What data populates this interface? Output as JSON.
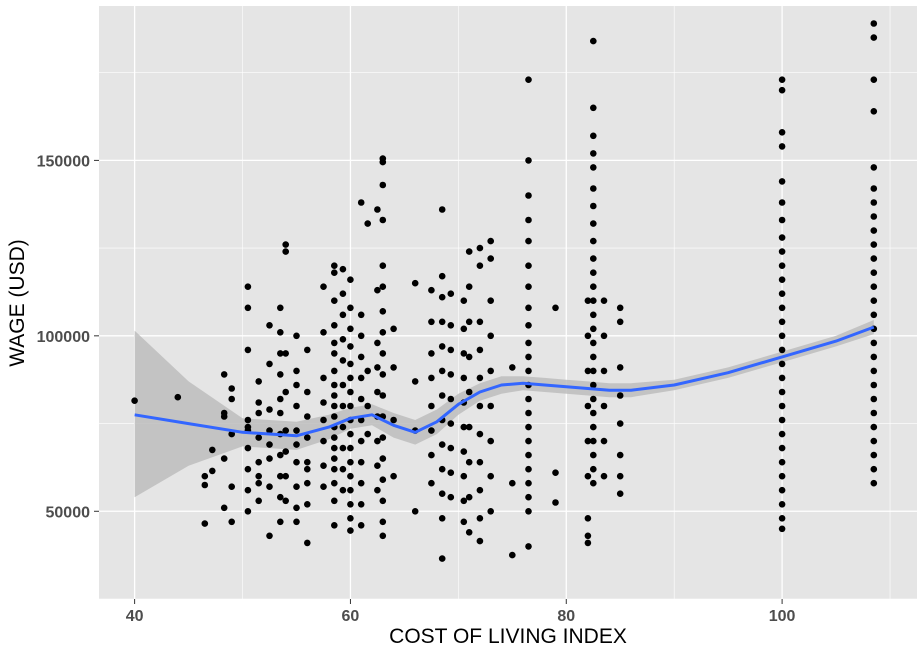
{
  "chart_data": {
    "type": "scatter",
    "title": "",
    "xlabel": "COST OF LIVING INDEX",
    "ylabel": "WAGE (USD)",
    "xlim": [
      36.7,
      112.5
    ],
    "ylim": [
      25000,
      194000
    ],
    "x_ticks": [
      40,
      60,
      80,
      100
    ],
    "x_tick_labels": [
      "40",
      "60",
      "80",
      "100"
    ],
    "y_ticks": [
      50000,
      100000,
      150000
    ],
    "y_tick_labels": [
      "50000",
      "100000",
      "150000"
    ],
    "grid": true,
    "legend": "none",
    "colors": {
      "panel": "#e5e5e5",
      "grid": "#ffffff",
      "points": "#000000",
      "smooth_line": "#3366ff",
      "ribbon": "#bdbdbd"
    },
    "columns": [
      {
        "x": 40.0,
        "wages": [
          81500
        ]
      },
      {
        "x": 44.0,
        "wages": [
          82500
        ]
      },
      {
        "x": 46.5,
        "wages": [
          60000,
          46500,
          57500
        ]
      },
      {
        "x": 47.2,
        "wages": [
          61500,
          67500
        ]
      },
      {
        "x": 48.3,
        "wages": [
          89000,
          78000,
          51000,
          65000,
          77000
        ]
      },
      {
        "x": 49.0,
        "wages": [
          85000,
          72000,
          47000,
          57000,
          82000
        ]
      },
      {
        "x": 50.5,
        "wages": [
          114000,
          108000,
          96000,
          76000,
          73000,
          68000,
          62000,
          56000,
          50000,
          74000
        ]
      },
      {
        "x": 51.5,
        "wages": [
          87000,
          81000,
          78000,
          64000,
          60000,
          53000,
          71000,
          58000
        ]
      },
      {
        "x": 52.5,
        "wages": [
          103000,
          92000,
          79000,
          73000,
          65000,
          57000,
          43000,
          69000
        ]
      },
      {
        "x": 53.5,
        "wages": [
          108000,
          101000,
          95000,
          89000,
          82000,
          78000,
          72000,
          66000,
          60000,
          54000,
          47000
        ]
      },
      {
        "x": 54.0,
        "wages": [
          126000,
          124000,
          95000,
          84000,
          73000,
          67000,
          60000,
          53000
        ]
      },
      {
        "x": 55.0,
        "wages": [
          100000,
          90000,
          86000,
          80000,
          73000,
          69000,
          64000,
          57000,
          51000,
          47000
        ]
      },
      {
        "x": 56.0,
        "wages": [
          96000,
          84000,
          77000,
          71000,
          64000,
          58000,
          52000,
          41000,
          62000
        ]
      },
      {
        "x": 57.5,
        "wages": [
          114000,
          101000,
          88000,
          81000,
          76000,
          70000,
          63000,
          57000
        ]
      },
      {
        "x": 58.5,
        "wages": [
          120000,
          118000,
          110000,
          103000,
          98000,
          95000,
          90000,
          86000,
          83000,
          80000,
          77000,
          74000,
          71000,
          68000,
          65000,
          62000,
          58000,
          53000,
          46000
        ]
      },
      {
        "x": 59.3,
        "wages": [
          119000,
          112000,
          106000,
          99000,
          93000,
          86000,
          80000,
          74000,
          68000,
          62000,
          56000
        ]
      },
      {
        "x": 60.0,
        "wages": [
          116000,
          108000,
          102000,
          97000,
          92000,
          88000,
          84000,
          80000,
          76000,
          72000,
          68000,
          64000,
          60000,
          56000,
          52000,
          48000,
          44500
        ]
      },
      {
        "x": 61.0,
        "wages": [
          138000,
          106000,
          100000,
          94000,
          88000,
          82000,
          76000,
          70000,
          64000,
          58000,
          52000,
          46000
        ]
      },
      {
        "x": 61.6,
        "wages": [
          132000,
          90000,
          80000,
          72000
        ]
      },
      {
        "x": 62.5,
        "wages": [
          136000,
          113000,
          98000,
          91000,
          84000,
          77000,
          70000,
          63000,
          56000
        ]
      },
      {
        "x": 63.0,
        "wages": [
          150500,
          149500,
          143000,
          133000,
          120000,
          114000,
          107000,
          101000,
          95000,
          89000,
          83000,
          77000,
          71000,
          65000,
          59000,
          53000,
          47000,
          43000
        ]
      },
      {
        "x": 64.0,
        "wages": [
          102000,
          91000,
          76000,
          60000
        ]
      },
      {
        "x": 66.0,
        "wages": [
          115000,
          87000,
          73000,
          50000
        ]
      },
      {
        "x": 67.5,
        "wages": [
          113000,
          104000,
          95000,
          88000,
          80000,
          73000,
          66000,
          58000
        ]
      },
      {
        "x": 68.5,
        "wages": [
          136000,
          117000,
          111000,
          104000,
          97000,
          90000,
          83000,
          76000,
          69000,
          62000,
          55000,
          48000,
          36500
        ]
      },
      {
        "x": 69.3,
        "wages": [
          112000,
          103000,
          96000,
          89000,
          82000,
          75000,
          68000,
          61000,
          54000
        ]
      },
      {
        "x": 70.5,
        "wages": [
          110000,
          102000,
          95000,
          88000,
          81000,
          74000,
          67000,
          60000,
          53000,
          47000
        ]
      },
      {
        "x": 71.0,
        "wages": [
          124000,
          114000,
          104000,
          94000,
          84000,
          74000,
          64000,
          54000,
          44000
        ]
      },
      {
        "x": 72.0,
        "wages": [
          125000,
          120000,
          104000,
          96000,
          88000,
          80000,
          72000,
          64000,
          56000,
          48000,
          41500
        ]
      },
      {
        "x": 73.0,
        "wages": [
          127000,
          122000,
          110000,
          100000,
          90000,
          80000,
          70000,
          60000,
          50000
        ]
      },
      {
        "x": 75.0,
        "wages": [
          91000,
          58000,
          37500
        ]
      },
      {
        "x": 76.5,
        "wages": [
          173000,
          150000,
          140000,
          133000,
          127000,
          120000,
          114000,
          108000,
          103000,
          98000,
          94000,
          90000,
          86000,
          82000,
          78000,
          74000,
          70000,
          66000,
          62000,
          58000,
          54000,
          50000,
          40000
        ]
      },
      {
        "x": 79.0,
        "wages": [
          108000,
          61000,
          52500
        ]
      },
      {
        "x": 82.0,
        "wages": [
          110000,
          100000,
          90000,
          80000,
          70000,
          60000,
          48000,
          43000,
          41000
        ]
      },
      {
        "x": 82.5,
        "wages": [
          184000,
          165000,
          157000,
          152000,
          148000,
          142000,
          137000,
          132000,
          127000,
          122000,
          118000,
          114000,
          110000,
          106000,
          102000,
          98000,
          94000,
          90000,
          86000,
          82000,
          78000,
          74000,
          70000,
          66000,
          62000,
          58000
        ]
      },
      {
        "x": 83.5,
        "wages": [
          110000,
          100000,
          90000,
          80000,
          70000,
          60000
        ]
      },
      {
        "x": 85.0,
        "wages": [
          108000,
          104000,
          91000,
          83000,
          75000,
          66000,
          60000,
          55000
        ]
      },
      {
        "x": 100.0,
        "wages": [
          173000,
          170000,
          158000,
          154000,
          144000,
          138000,
          133000,
          128000,
          124000,
          120000,
          116000,
          112000,
          108000,
          104000,
          100000,
          96000,
          92000,
          88000,
          84000,
          80000,
          76000,
          72000,
          68000,
          64000,
          60000,
          56000,
          52000,
          48000,
          45000
        ]
      },
      {
        "x": 108.5,
        "wages": [
          189000,
          185000,
          173000,
          164000,
          148000,
          142000,
          138000,
          134000,
          130000,
          126000,
          122000,
          118000,
          114000,
          110000,
          106000,
          102000,
          98000,
          94000,
          90000,
          86000,
          82000,
          78000,
          74000,
          70000,
          66000,
          62000,
          58000
        ]
      }
    ],
    "smooth": {
      "x": [
        40,
        45,
        50,
        55,
        58,
        60,
        62,
        64,
        66,
        68,
        70,
        72,
        74,
        76,
        78,
        80,
        82,
        84,
        86,
        90,
        95,
        100,
        105,
        108.5
      ],
      "y": [
        77500,
        75000,
        72500,
        71500,
        74000,
        76500,
        77500,
        74500,
        72500,
        75500,
        80500,
        84000,
        86000,
        86500,
        86000,
        85500,
        85000,
        84500,
        84500,
        86000,
        89500,
        94000,
        98500,
        102500
      ],
      "lower": [
        54000,
        63000,
        68500,
        67500,
        70500,
        73500,
        74500,
        71000,
        69000,
        72000,
        77500,
        81500,
        83500,
        84500,
        84000,
        83500,
        83000,
        82500,
        82500,
        84500,
        88000,
        92500,
        97000,
        100500
      ],
      "upper": [
        101500,
        87000,
        76500,
        75500,
        77500,
        79500,
        80500,
        78000,
        76000,
        79000,
        83500,
        86500,
        88500,
        88500,
        88000,
        87500,
        87000,
        86500,
        86500,
        87500,
        91000,
        95500,
        100000,
        104500
      ]
    }
  }
}
